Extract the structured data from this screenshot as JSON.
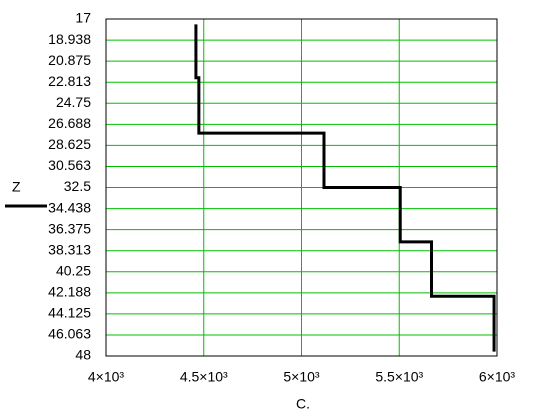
{
  "chart_data": {
    "type": "line",
    "xlabel": "C.",
    "series": [
      {
        "name": "Z",
        "color": "#000000",
        "x": [
          4460,
          4460,
          4475,
          4475,
          5115,
          5115,
          5505,
          5505,
          5665,
          5665,
          5985,
          5985
        ],
        "values": [
          17.5,
          22.4,
          22.4,
          27.5,
          27.5,
          32.5,
          32.5,
          37.5,
          37.5,
          42.5,
          42.5,
          47.6
        ]
      }
    ],
    "xlim": [
      4000,
      6000
    ],
    "xticks": [
      {
        "value": 4000,
        "label": "4×10³"
      },
      {
        "value": 4500,
        "label": "4.5×10³"
      },
      {
        "value": 5000,
        "label": "5×10³"
      },
      {
        "value": 5500,
        "label": "5.5×10³"
      },
      {
        "value": 6000,
        "label": "6×10³"
      }
    ],
    "ylim": [
      17,
      48
    ],
    "y_inverted": true,
    "yticks": [
      17,
      18.938,
      20.875,
      22.813,
      24.75,
      26.688,
      28.625,
      30.563,
      32.5,
      34.438,
      36.375,
      38.313,
      40.25,
      42.188,
      44.125,
      46.063,
      48
    ],
    "grid": true,
    "grid_color": "#00c000"
  }
}
